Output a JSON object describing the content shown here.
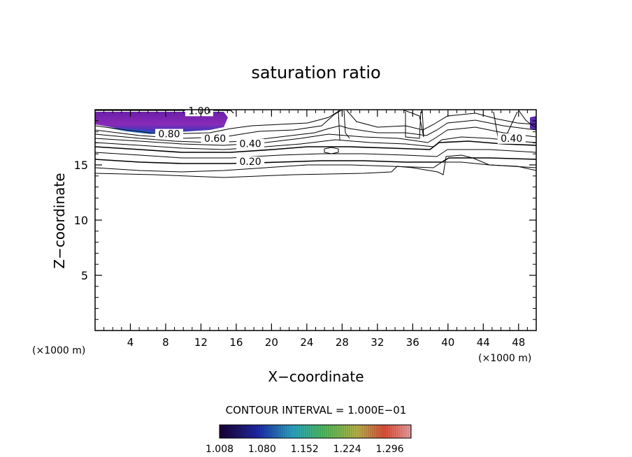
{
  "chart_data": {
    "type": "contour",
    "title": "saturation ratio",
    "xlabel": "X−coordinate",
    "ylabel": "Z−coordinate",
    "x_unit_left": "(×1000 m)",
    "x_unit_right": "(×1000 m)",
    "xlim": [
      0,
      50
    ],
    "ylim": [
      0,
      20
    ],
    "x_ticks": [
      "4",
      "8",
      "12",
      "16",
      "20",
      "24",
      "28",
      "32",
      "36",
      "40",
      "44",
      "48"
    ],
    "y_ticks": [
      "5",
      "10",
      "15"
    ],
    "contour_interval_text": "CONTOUR INTERVAL = 1.000E−01",
    "contour_levels": [
      0.0,
      0.1,
      0.2,
      0.3,
      0.4,
      0.5,
      0.6,
      0.7,
      0.8,
      0.9,
      1.0
    ],
    "contour_labels": [
      {
        "text": "1.00",
        "x": 11.8,
        "z": 19.6
      },
      {
        "text": "0.80",
        "x": 8.4,
        "z": 17.5
      },
      {
        "text": "0.60",
        "x": 13.6,
        "z": 17.1
      },
      {
        "text": "0.40",
        "x": 17.6,
        "z": 16.6
      },
      {
        "text": "0.20",
        "x": 17.6,
        "z": 15.0
      },
      {
        "text": "0.40",
        "x": 47.2,
        "z": 17.1
      }
    ],
    "colorbar": {
      "ticks": [
        "1.008",
        "1.080",
        "1.152",
        "1.224",
        "1.296"
      ],
      "range": [
        1.008,
        1.332
      ]
    },
    "grid": false
  }
}
